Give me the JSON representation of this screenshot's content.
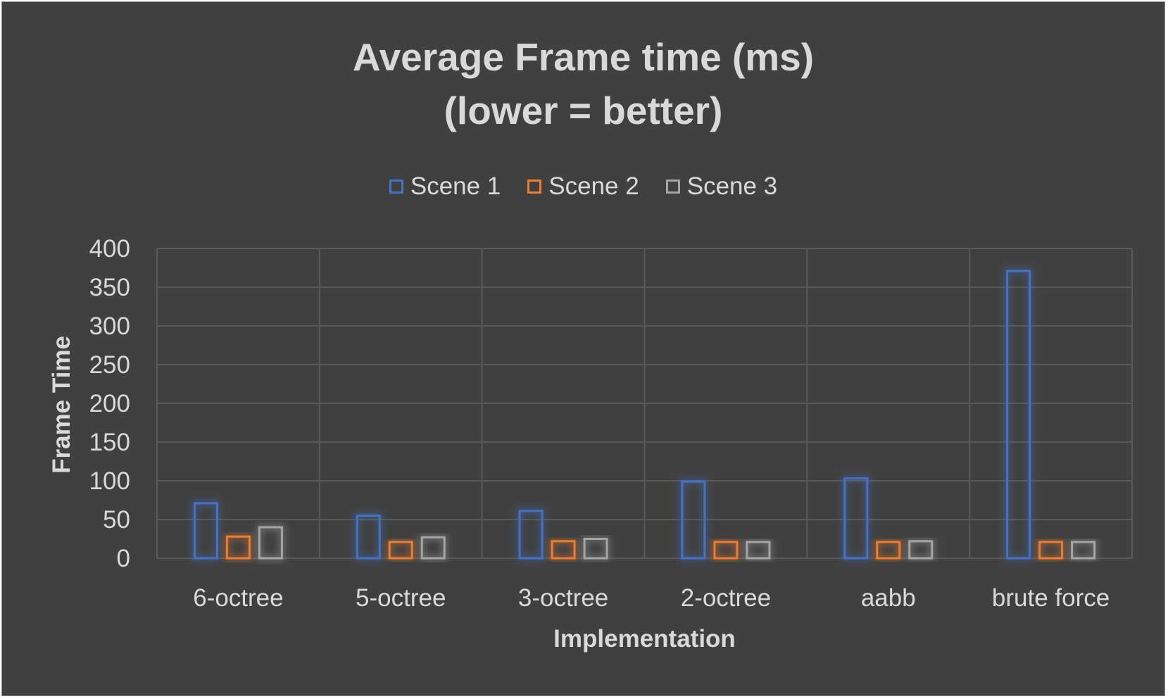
{
  "chart_data": {
    "type": "bar",
    "title": [
      "Average Frame time (ms)",
      "(lower = better)"
    ],
    "xlabel": "Implementation",
    "ylabel": "Frame Time",
    "categories": [
      "6-octree",
      "5-octree",
      "3-octree",
      "2-octree",
      "aabb",
      "brute force"
    ],
    "series": [
      {
        "name": "Scene 1",
        "color": "#4472c4",
        "values": [
          71,
          55,
          61,
          99,
          103,
          371
        ]
      },
      {
        "name": "Scene 2",
        "color": "#ed7d31",
        "values": [
          28,
          21,
          22,
          21,
          21,
          21
        ]
      },
      {
        "name": "Scene 3",
        "color": "#a5a5a5",
        "values": [
          40,
          27,
          25,
          21,
          22,
          21
        ]
      }
    ],
    "ylim": [
      0,
      400
    ],
    "yticks": [
      0,
      50,
      100,
      150,
      200,
      250,
      300,
      350,
      400
    ],
    "grid": true,
    "legend_position": "top"
  },
  "colors": {
    "background": "#404040",
    "text": "#d9d9d9",
    "grid": "#595959"
  }
}
